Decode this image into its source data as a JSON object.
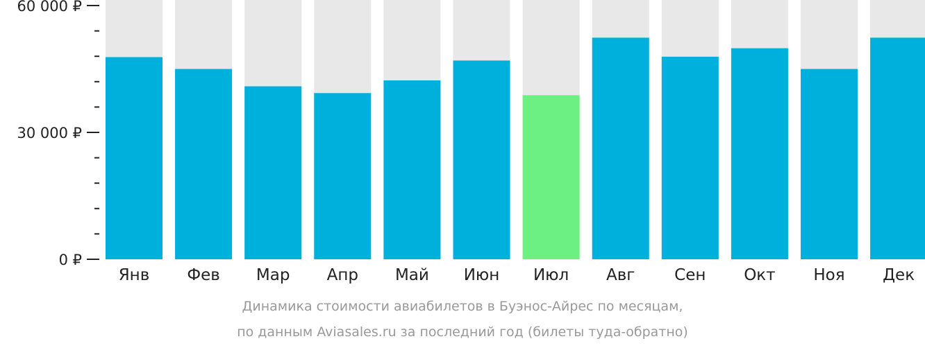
{
  "chart_data": {
    "type": "bar",
    "categories": [
      "Янв",
      "Фев",
      "Мар",
      "Апр",
      "Май",
      "Июн",
      "Июл",
      "Авг",
      "Сен",
      "Окт",
      "Ноя",
      "Дек"
    ],
    "values": [
      47800,
      45000,
      40900,
      39300,
      42300,
      47000,
      38800,
      52400,
      47900,
      49900,
      45000,
      52400
    ],
    "ylim": [
      0,
      60000
    ],
    "y_ticks": [
      {
        "value": 0,
        "label": "0 ₽"
      },
      {
        "value": 30000,
        "label": "30 000 ₽"
      },
      {
        "value": 60000,
        "label": "60 000 ₽"
      }
    ],
    "minor_tick_step": 6000,
    "highlight_index": 6,
    "grid": false,
    "legend": "none",
    "colors": {
      "bar": "#00b0dc",
      "highlight": "#6cf084",
      "background": "#e8e8e8",
      "axis": "#222222"
    }
  },
  "caption": {
    "line1": "Динамика стоимости авиабилетов в Буэнос-Айрес по месяцам,",
    "line2": "по данным Aviasales.ru за последний год (билеты туда-обратно)"
  }
}
